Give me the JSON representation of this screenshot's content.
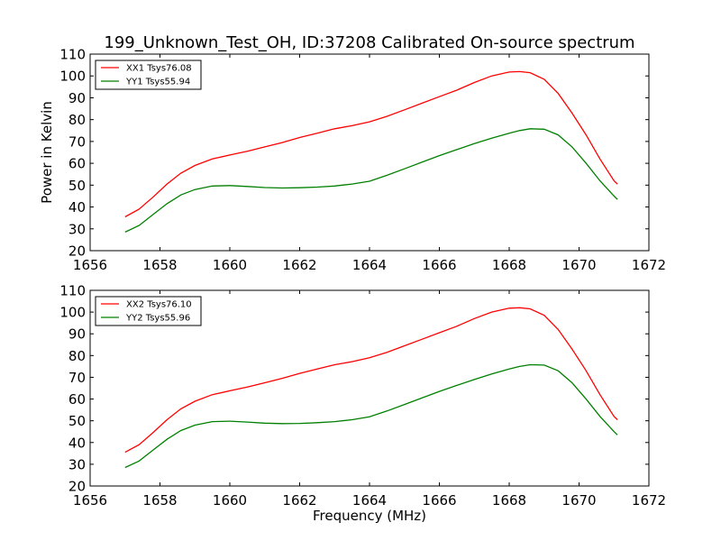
{
  "title": "199_Unknown_Test_OH, ID:37208 Calibrated On-source spectrum",
  "chart_data": [
    {
      "type": "line",
      "title": "199_Unknown_Test_OH, ID:37208 Calibrated On-source spectrum",
      "xlabel": "",
      "ylabel": "Power in Kelvin",
      "xlim": [
        1656,
        1672
      ],
      "ylim": [
        20,
        110
      ],
      "xticks": [
        1656,
        1658,
        1660,
        1662,
        1664,
        1666,
        1668,
        1670,
        1672
      ],
      "yticks": [
        20,
        30,
        40,
        50,
        60,
        70,
        80,
        90,
        100,
        110
      ],
      "grid": false,
      "legend_position": "top-left",
      "series": [
        {
          "name": "XX1 Tsys76.08",
          "color": "#ff0000",
          "x": [
            1657.0,
            1657.4,
            1657.8,
            1658.2,
            1658.6,
            1659.0,
            1659.5,
            1660.0,
            1660.5,
            1661.0,
            1661.5,
            1662.0,
            1662.5,
            1663.0,
            1663.5,
            1664.0,
            1664.5,
            1665.0,
            1665.5,
            1666.0,
            1666.5,
            1667.0,
            1667.5,
            1668.0,
            1668.3,
            1668.6,
            1669.0,
            1669.4,
            1669.8,
            1670.2,
            1670.6,
            1671.0,
            1671.1
          ],
          "y": [
            35.5,
            39,
            44.5,
            50.5,
            55.5,
            59,
            62,
            63.8,
            65.5,
            67.5,
            69.5,
            71.8,
            73.8,
            75.8,
            77.2,
            79,
            81.5,
            84.5,
            87.5,
            90.5,
            93.5,
            97,
            100,
            101.8,
            102,
            101.5,
            98.5,
            92,
            83,
            73,
            62,
            52,
            50.5
          ]
        },
        {
          "name": "YY1 Tsys55.94",
          "color": "#008000",
          "x": [
            1657.0,
            1657.4,
            1657.8,
            1658.2,
            1658.6,
            1659.0,
            1659.5,
            1660.0,
            1660.5,
            1661.0,
            1661.5,
            1662.0,
            1662.5,
            1663.0,
            1663.5,
            1664.0,
            1664.5,
            1665.0,
            1665.5,
            1666.0,
            1666.5,
            1667.0,
            1667.5,
            1668.0,
            1668.3,
            1668.6,
            1669.0,
            1669.4,
            1669.8,
            1670.2,
            1670.6,
            1671.0,
            1671.1
          ],
          "y": [
            28.5,
            31.5,
            36.5,
            41.5,
            45.5,
            48,
            49.6,
            49.8,
            49.4,
            48.9,
            48.7,
            48.8,
            49.1,
            49.6,
            50.5,
            51.8,
            54.5,
            57.5,
            60.5,
            63.5,
            66.3,
            69,
            71.5,
            73.8,
            75,
            75.8,
            75.6,
            73,
            67.5,
            60,
            52,
            45,
            43.5
          ]
        }
      ]
    },
    {
      "type": "line",
      "title": "",
      "xlabel": "Frequency (MHz)",
      "ylabel": "",
      "xlim": [
        1656,
        1672
      ],
      "ylim": [
        20,
        110
      ],
      "xticks": [
        1656,
        1658,
        1660,
        1662,
        1664,
        1666,
        1668,
        1670,
        1672
      ],
      "yticks": [
        20,
        30,
        40,
        50,
        60,
        70,
        80,
        90,
        100,
        110
      ],
      "grid": false,
      "legend_position": "top-left",
      "series": [
        {
          "name": "XX2 Tsys76.10",
          "color": "#ff0000",
          "x": [
            1657.0,
            1657.4,
            1657.8,
            1658.2,
            1658.6,
            1659.0,
            1659.5,
            1660.0,
            1660.5,
            1661.0,
            1661.5,
            1662.0,
            1662.5,
            1663.0,
            1663.5,
            1664.0,
            1664.5,
            1665.0,
            1665.5,
            1666.0,
            1666.5,
            1667.0,
            1667.5,
            1668.0,
            1668.3,
            1668.6,
            1669.0,
            1669.4,
            1669.8,
            1670.2,
            1670.6,
            1671.0,
            1671.1
          ],
          "y": [
            35.5,
            39,
            44.5,
            50.5,
            55.5,
            59,
            62,
            63.8,
            65.5,
            67.5,
            69.5,
            71.8,
            73.8,
            75.8,
            77.2,
            79,
            81.5,
            84.5,
            87.5,
            90.5,
            93.5,
            97,
            100,
            101.8,
            102,
            101.5,
            98.5,
            92,
            83,
            73,
            62,
            52,
            50.5
          ]
        },
        {
          "name": "YY2 Tsys55.96",
          "color": "#008000",
          "x": [
            1657.0,
            1657.4,
            1657.8,
            1658.2,
            1658.6,
            1659.0,
            1659.5,
            1660.0,
            1660.5,
            1661.0,
            1661.5,
            1662.0,
            1662.5,
            1663.0,
            1663.5,
            1664.0,
            1664.5,
            1665.0,
            1665.5,
            1666.0,
            1666.5,
            1667.0,
            1667.5,
            1668.0,
            1668.3,
            1668.6,
            1669.0,
            1669.4,
            1669.8,
            1670.2,
            1670.6,
            1671.0,
            1671.1
          ],
          "y": [
            28.5,
            31.5,
            36.5,
            41.5,
            45.5,
            48,
            49.6,
            49.8,
            49.4,
            48.9,
            48.7,
            48.8,
            49.1,
            49.6,
            50.5,
            51.8,
            54.5,
            57.5,
            60.5,
            63.5,
            66.3,
            69,
            71.5,
            73.8,
            75,
            75.8,
            75.6,
            73,
            67.5,
            60,
            52,
            45,
            43.5
          ]
        }
      ]
    }
  ]
}
